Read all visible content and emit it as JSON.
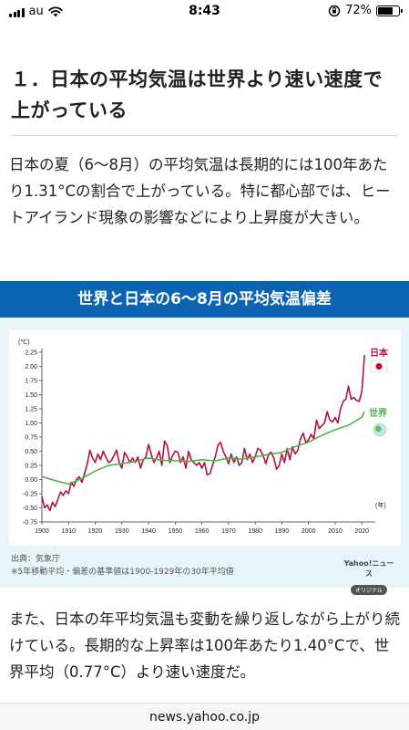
{
  "status_bar": {
    "carrier": "au",
    "time": "8:43",
    "battery_percent": "72%",
    "battery_level": 0.72
  },
  "article": {
    "heading": "１．日本の平均気温は世界より速い速度で上がっている",
    "paragraph1": "日本の夏（6〜8月）の平均気温は長期的には100年あたり1.31°Cの割合で上がっている。特に都心部では、ヒートアイランド現象の影響などにより上昇度が大きい。",
    "paragraph2": "また、日本の年平均気温も変動を繰り返しながら上がり続けている。長期的な上昇率は100年あたり1.40°Cで、世界平均（0.77°C）より速い速度だ。"
  },
  "figure": {
    "title": "世界と日本の6〜8月の平均気温偏差",
    "source_line1": "出典：気象庁",
    "source_line2": "※5年移動平均・偏差の基準値は1900-1929年の30年平均値",
    "logo_text": "Yahoo!ニュース",
    "logo_badge": "オリジナル"
  },
  "chart_data": {
    "type": "line",
    "ylabel": "(℃)",
    "xlabel": "(年)",
    "ylim": [
      -0.75,
      2.25
    ],
    "xlim": [
      1900,
      2023
    ],
    "yticks": [
      "2.25",
      "2.00",
      "1.75",
      "1.50",
      "1.25",
      "1.00",
      "0.75",
      "0.50",
      "0.25",
      "0.00",
      "-0.25",
      "-0.50",
      "-0.75"
    ],
    "xticks": [
      "1900",
      "1910",
      "1920",
      "1930",
      "1940",
      "1950",
      "1960",
      "1970",
      "1980",
      "1990",
      "2000",
      "2010",
      "2020"
    ],
    "grid": false,
    "legend": "right",
    "series": [
      {
        "name": "日本",
        "color": "#b3123f",
        "x": [
          1900,
          1901,
          1902,
          1903,
          1904,
          1905,
          1906,
          1907,
          1908,
          1909,
          1910,
          1911,
          1912,
          1913,
          1914,
          1915,
          1916,
          1917,
          1918,
          1919,
          1920,
          1921,
          1922,
          1923,
          1924,
          1925,
          1926,
          1927,
          1928,
          1929,
          1930,
          1931,
          1932,
          1933,
          1934,
          1935,
          1936,
          1937,
          1938,
          1939,
          1940,
          1941,
          1942,
          1943,
          1944,
          1945,
          1946,
          1947,
          1948,
          1949,
          1950,
          1951,
          1952,
          1953,
          1954,
          1955,
          1956,
          1957,
          1958,
          1959,
          1960,
          1961,
          1962,
          1963,
          1964,
          1965,
          1966,
          1967,
          1968,
          1969,
          1970,
          1971,
          1972,
          1973,
          1974,
          1975,
          1976,
          1977,
          1978,
          1979,
          1980,
          1981,
          1982,
          1983,
          1984,
          1985,
          1986,
          1987,
          1988,
          1989,
          1990,
          1991,
          1992,
          1993,
          1994,
          1995,
          1996,
          1997,
          1998,
          1999,
          2000,
          2001,
          2002,
          2003,
          2004,
          2005,
          2006,
          2007,
          2008,
          2009,
          2010,
          2011,
          2012,
          2013,
          2014,
          2015,
          2016,
          2017,
          2018,
          2019,
          2020,
          2021
        ],
        "y": [
          -0.3,
          -0.5,
          -0.45,
          -0.55,
          -0.4,
          -0.48,
          -0.35,
          -0.22,
          -0.28,
          -0.2,
          -0.25,
          -0.05,
          -0.12,
          0.0,
          0.05,
          -0.05,
          0.1,
          0.28,
          0.52,
          0.38,
          0.3,
          0.45,
          0.35,
          0.5,
          0.4,
          0.3,
          0.33,
          0.42,
          0.52,
          0.3,
          0.2,
          0.48,
          0.4,
          0.3,
          0.38,
          0.3,
          0.4,
          0.2,
          0.35,
          0.4,
          0.62,
          0.45,
          0.3,
          0.38,
          0.5,
          0.25,
          0.68,
          0.6,
          0.3,
          0.42,
          0.5,
          0.48,
          0.3,
          0.4,
          0.2,
          0.5,
          0.35,
          0.3,
          0.25,
          0.3,
          0.2,
          0.3,
          0.08,
          0.1,
          0.25,
          0.4,
          0.6,
          0.66,
          0.5,
          0.4,
          0.28,
          0.45,
          0.3,
          0.4,
          0.25,
          0.3,
          0.55,
          0.35,
          0.45,
          0.3,
          0.4,
          0.55,
          0.52,
          0.42,
          0.28,
          0.45,
          0.48,
          0.38,
          0.18,
          0.25,
          0.45,
          0.3,
          0.55,
          0.35,
          0.58,
          0.45,
          0.52,
          0.72,
          0.82,
          0.65,
          0.7,
          0.8,
          0.72,
          1.05,
          0.9,
          0.95,
          1.0,
          1.2,
          1.05,
          1.02,
          1.1,
          1.0,
          1.25,
          1.38,
          1.42,
          1.65,
          1.42,
          1.45,
          1.4,
          1.38,
          1.55,
          2.2
        ],
        "label": "日本"
      },
      {
        "name": "世界",
        "color": "#4db349",
        "x": [
          1900,
          1905,
          1910,
          1915,
          1920,
          1925,
          1930,
          1935,
          1940,
          1945,
          1950,
          1955,
          1960,
          1965,
          1970,
          1975,
          1980,
          1985,
          1990,
          1995,
          2000,
          2005,
          2010,
          2015,
          2020,
          2021
        ],
        "y": [
          0.05,
          -0.02,
          -0.08,
          0.02,
          0.15,
          0.25,
          0.28,
          0.32,
          0.38,
          0.34,
          0.33,
          0.32,
          0.35,
          0.33,
          0.38,
          0.36,
          0.4,
          0.44,
          0.48,
          0.58,
          0.66,
          0.78,
          0.88,
          0.96,
          1.1,
          1.2
        ],
        "label": "世界"
      }
    ]
  },
  "url_bar": {
    "url": "news.yahoo.co.jp"
  }
}
